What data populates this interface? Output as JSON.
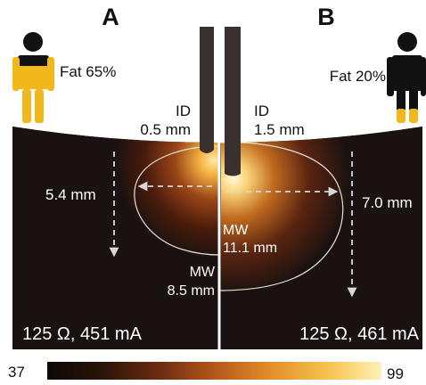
{
  "panels": {
    "a": {
      "letter": "A",
      "fat_label": "Fat 65%",
      "fat_fraction": 0.65,
      "id_label": "ID",
      "id_value": "0.5 mm",
      "depth_label": "5.4 mm",
      "mw_label": "MW",
      "mw_value": "8.5 mm",
      "bottom_label": "125 Ω, 451 mA",
      "figure_color": "#f2b81b"
    },
    "b": {
      "letter": "B",
      "fat_label": "Fat 20%",
      "fat_fraction": 0.2,
      "id_label": "ID",
      "id_value": "1.5 mm",
      "depth_label": "7.0 mm",
      "mw_label": "MW",
      "mw_value": "11.1 mm",
      "bottom_label": "125 Ω, 461 mA",
      "figure_color": "#111111",
      "figure_accent": "#f2b81b"
    }
  },
  "colorbar": {
    "min_label": "37",
    "max_label": "99",
    "stops": [
      "#0d0806",
      "#2a1309",
      "#6b2a0f",
      "#b4571a",
      "#e28f2a",
      "#f7c24e",
      "#fff0b8"
    ]
  },
  "colors": {
    "background": "#1a1210",
    "electrode": "#3a3030",
    "hot_spot": "#fff6d0",
    "arrow": "#d8d8d8"
  }
}
